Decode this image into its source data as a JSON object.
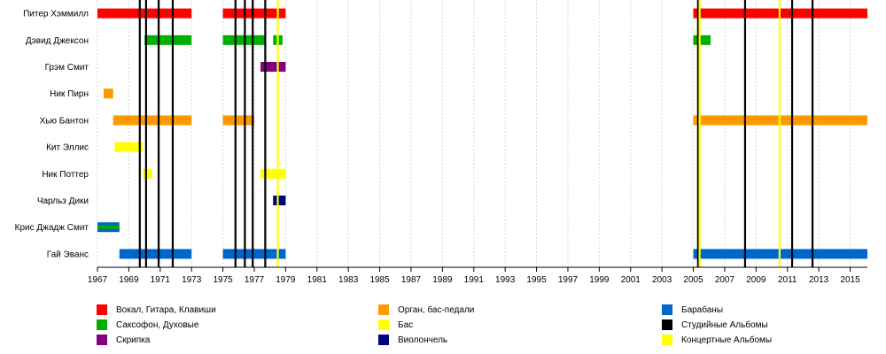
{
  "chart_data": {
    "type": "timeline",
    "title": "",
    "xlabel": "",
    "ylabel": "",
    "xlim": [
      1967,
      2016.1
    ],
    "x_ticks": [
      1967,
      1969,
      1971,
      1973,
      1975,
      1977,
      1979,
      1981,
      1983,
      1985,
      1987,
      1989,
      1991,
      1993,
      1995,
      1997,
      1999,
      2001,
      2003,
      2005,
      2007,
      2009,
      2011,
      2013,
      2015
    ],
    "members": [
      "Питер Хэммилл",
      "Дэвид Джексон",
      "Грэм Смит",
      "Ник Пирн",
      "Хью Бантон",
      "Кит Эллис",
      "Ник Поттер",
      "Чарльз Дики",
      "Крис Джадж Смит",
      "Гай Эванс"
    ],
    "roles": {
      "vocals": {
        "label": "Вокал, Гитара, Клавиши",
        "color": "#ff0000"
      },
      "sax": {
        "label": "Саксофон, Духовые",
        "color": "#00b000"
      },
      "violin": {
        "label": "Скрипка",
        "color": "#800080"
      },
      "organ": {
        "label": "Орган, бас-педали",
        "color": "#ff9900"
      },
      "bass": {
        "label": "Бас",
        "color": "#ffff00"
      },
      "cello": {
        "label": "Виолончель",
        "color": "#000080"
      },
      "drums": {
        "label": "Барабаны",
        "color": "#0066cc"
      },
      "studio": {
        "label": "Студийные Альбомы",
        "color": "#000000"
      },
      "live": {
        "label": "Концертные Альбомы",
        "color": "#ffff00"
      }
    },
    "bars": [
      {
        "member": 0,
        "role": "vocals",
        "start": 1967.0,
        "end": 1973.0
      },
      {
        "member": 0,
        "role": "vocals",
        "start": 1975.0,
        "end": 1979.0
      },
      {
        "member": 0,
        "role": "vocals",
        "start": 2005.0,
        "end": 2016.1
      },
      {
        "member": 1,
        "role": "sax",
        "start": 1970.0,
        "end": 1973.0
      },
      {
        "member": 1,
        "role": "sax",
        "start": 1975.0,
        "end": 1977.7
      },
      {
        "member": 1,
        "role": "sax",
        "start": 1978.2,
        "end": 1978.8
      },
      {
        "member": 1,
        "role": "sax",
        "start": 2005.0,
        "end": 2006.1
      },
      {
        "member": 2,
        "role": "violin",
        "start": 1977.4,
        "end": 1979.0
      },
      {
        "member": 3,
        "role": "organ",
        "start": 1967.4,
        "end": 1968.0
      },
      {
        "member": 4,
        "role": "organ",
        "start": 1968.0,
        "end": 1973.0
      },
      {
        "member": 4,
        "role": "organ",
        "start": 1975.0,
        "end": 1977.0
      },
      {
        "member": 4,
        "role": "organ",
        "start": 2005.0,
        "end": 2016.1
      },
      {
        "member": 5,
        "role": "bass",
        "start": 1968.1,
        "end": 1969.9
      },
      {
        "member": 6,
        "role": "bass",
        "start": 1969.9,
        "end": 1970.5
      },
      {
        "member": 6,
        "role": "bass",
        "start": 1977.4,
        "end": 1979.0
      },
      {
        "member": 7,
        "role": "cello",
        "start": 1978.2,
        "end": 1979.0
      },
      {
        "member": 8,
        "role": "drums",
        "start": 1967.0,
        "end": 1968.4
      },
      {
        "member": 8,
        "role": "sax",
        "start": 1967.0,
        "end": 1968.4,
        "overlay": true
      },
      {
        "member": 9,
        "role": "drums",
        "start": 1968.4,
        "end": 1973.0
      },
      {
        "member": 9,
        "role": "drums",
        "start": 1975.0,
        "end": 1979.0
      },
      {
        "member": 9,
        "role": "drums",
        "start": 2005.0,
        "end": 2016.1
      }
    ],
    "studio_albums": [
      1969.7,
      1970.1,
      1970.9,
      1971.8,
      1975.8,
      1976.4,
      1976.9,
      1977.7,
      2005.3,
      2008.3,
      2011.3,
      2012.6
    ],
    "live_albums": [
      1978.5,
      2005.4,
      2010.5
    ],
    "legend": [
      {
        "role": "vocals",
        "col": 0,
        "row": 0
      },
      {
        "role": "sax",
        "col": 0,
        "row": 1
      },
      {
        "role": "violin",
        "col": 0,
        "row": 2
      },
      {
        "role": "organ",
        "col": 1,
        "row": 0
      },
      {
        "role": "bass",
        "col": 1,
        "row": 1
      },
      {
        "role": "cello",
        "col": 1,
        "row": 2
      },
      {
        "role": "drums",
        "col": 2,
        "row": 0
      },
      {
        "role": "studio",
        "col": 2,
        "row": 1
      },
      {
        "role": "live",
        "col": 2,
        "row": 2
      }
    ],
    "legend_placement": "bottom",
    "grid": "vertical"
  }
}
